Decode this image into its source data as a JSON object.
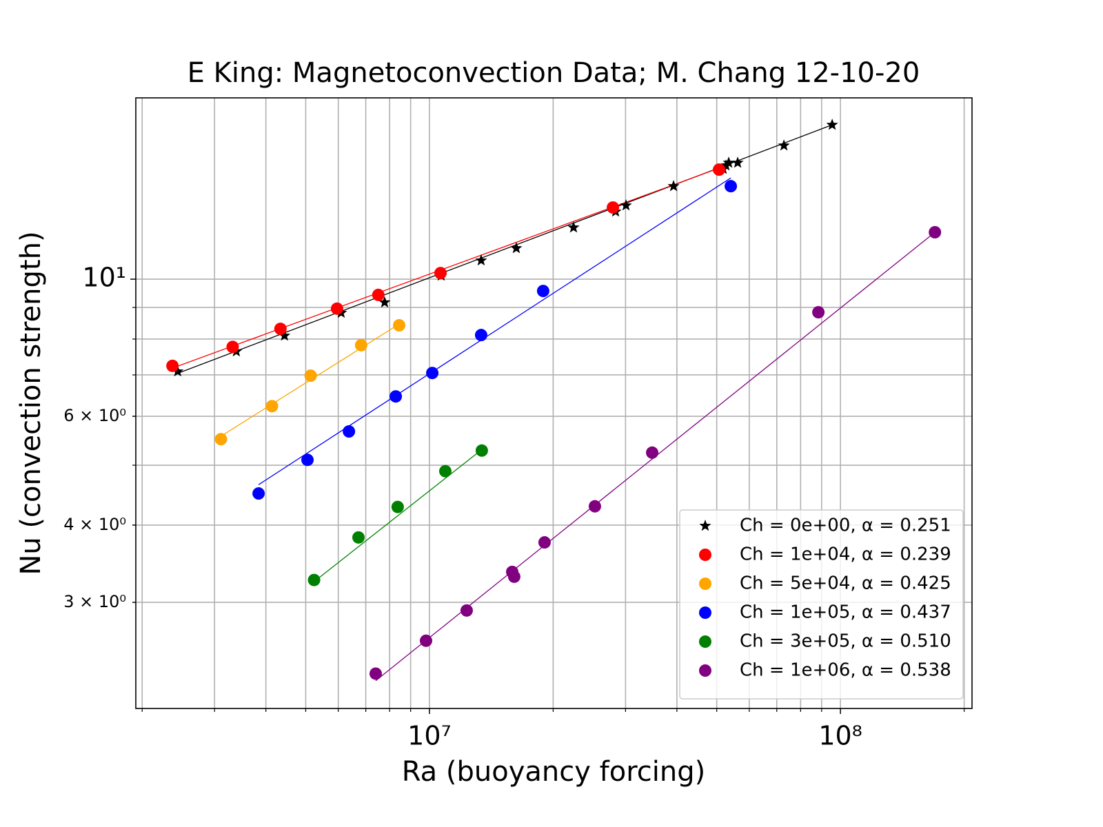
{
  "chart_data": {
    "type": "scatter",
    "title": "E King: Magnetoconvection Data; M. Chang 12-10-20",
    "x_label": "Ra (buoyancy forcing)",
    "y_label": "Nu (convection strength)",
    "xscale": "log",
    "yscale": "log",
    "grid": true,
    "legend": "lower right",
    "xlim": [
      1930000,
      209000000
    ],
    "ylim": [
      2.02,
      19.65
    ],
    "xticks": [
      {
        "value": 10000000,
        "label": "10⁷"
      },
      {
        "value": 100000000,
        "label": "10⁸"
      }
    ],
    "xminorticks": [
      2000000,
      3000000,
      4000000,
      5000000,
      6000000,
      7000000,
      8000000,
      9000000,
      20000000,
      30000000,
      40000000,
      50000000,
      60000000,
      70000000,
      80000000,
      90000000,
      200000000
    ],
    "yticks": [
      {
        "value": 3,
        "label": "3 × 10⁰"
      },
      {
        "value": 4,
        "label": "4 × 10⁰"
      },
      {
        "value": 6,
        "label": "6 × 10⁰"
      },
      {
        "value": 10,
        "label": "10¹"
      }
    ],
    "yminorticks": [
      5,
      7,
      8,
      9
    ],
    "series": [
      {
        "name": "Ch = 0e+00, α = 0.251",
        "color": "#000000",
        "marker": "star",
        "x": [
          2440000,
          3390000,
          4440000,
          6100000,
          7780000,
          10680000,
          13360000,
          16270000,
          22420000,
          28380000,
          30080000,
          39260000,
          51850000,
          52660000,
          53480000,
          56230000,
          72860000,
          95480000
        ],
        "values": [
          7.09,
          7.64,
          8.1,
          8.82,
          9.17,
          10.13,
          10.72,
          11.22,
          12.12,
          12.86,
          13.16,
          14.14,
          15.08,
          15.27,
          15.43,
          15.43,
          16.45,
          17.77
        ],
        "fit_x": [
          2440000,
          95480000
        ],
        "fit_y": [
          7.04,
          17.77
        ]
      },
      {
        "name": "Ch = 1e+04, α = 0.239",
        "color": "#ff0000",
        "marker": "circle",
        "x": [
          2370000,
          3320000,
          4340000,
          5960000,
          7510000,
          10640000,
          27950000,
          50660000
        ],
        "values": [
          7.24,
          7.77,
          8.31,
          8.96,
          9.43,
          10.23,
          13.06,
          15.04
        ],
        "fit_x": [
          2370000,
          50660000
        ],
        "fit_y": [
          7.18,
          15.12
        ]
      },
      {
        "name": "Ch = 5e+04, α = 0.425",
        "color": "#ffa500",
        "marker": "circle",
        "x": [
          3110000,
          4140000,
          5140000,
          6820000,
          8440000
        ],
        "values": [
          5.51,
          6.23,
          6.98,
          7.82,
          8.42
        ],
        "fit_x": [
          3110000,
          8440000
        ],
        "fit_y": [
          5.57,
          8.46
        ]
      },
      {
        "name": "Ch = 1e+05, α = 0.437",
        "color": "#0000ff",
        "marker": "circle",
        "x": [
          3840000,
          5050000,
          6370000,
          8280000,
          10160000,
          13360000,
          18910000,
          54100000
        ],
        "values": [
          4.5,
          5.1,
          5.67,
          6.46,
          7.05,
          8.12,
          9.57,
          14.14
        ],
        "fit_x": [
          3840000,
          54100000
        ],
        "fit_y": [
          4.65,
          14.58
        ]
      },
      {
        "name": "Ch = 3e+05, α = 0.510",
        "color": "#008000",
        "marker": "circle",
        "x": [
          5240000,
          6720000,
          8370000,
          10930000,
          13410000
        ],
        "values": [
          3.26,
          3.82,
          4.28,
          4.89,
          5.28
        ],
        "fit_x": [
          5240000,
          13410000
        ],
        "fit_y": [
          3.24,
          5.3
        ]
      },
      {
        "name": "Ch = 1e+06, α = 0.538",
        "color": "#800080",
        "marker": "circle",
        "x": [
          7400000,
          9810000,
          12320000,
          15900000,
          16080000,
          19060000,
          25270000,
          34830000,
          88380000,
          169800000
        ],
        "values": [
          2.3,
          2.6,
          2.91,
          3.36,
          3.3,
          3.75,
          4.29,
          5.24,
          8.84,
          11.91
        ],
        "fit_x": [
          7400000,
          169800000
        ],
        "fit_y": [
          2.24,
          11.91
        ]
      }
    ]
  }
}
